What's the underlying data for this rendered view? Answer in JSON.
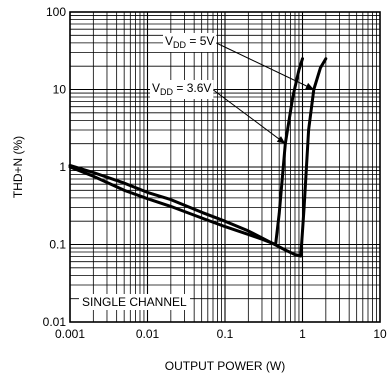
{
  "chart_data": {
    "type": "line",
    "title": "",
    "xlabel": "OUTPUT POWER (W)",
    "ylabel": "THD+N (%)",
    "x_scale": "log",
    "y_scale": "log",
    "xlim": [
      0.001,
      10
    ],
    "ylim": [
      0.01,
      100
    ],
    "grid": true,
    "x_ticks": [
      "0.001",
      "0.01",
      "0.1",
      "1",
      "10"
    ],
    "y_ticks": [
      "100",
      "10",
      "1",
      "0.1",
      "0.01"
    ],
    "legend_box": "SINGLE CHANNEL",
    "series": [
      {
        "name": "V_DD = 5V",
        "x": [
          0.001,
          0.002,
          0.005,
          0.01,
          0.02,
          0.05,
          0.1,
          0.2,
          0.4,
          0.6,
          0.8,
          0.95,
          1.05,
          1.2,
          1.4,
          1.7,
          2.0
        ],
        "y": [
          1.05,
          0.85,
          0.62,
          0.47,
          0.38,
          0.26,
          0.2,
          0.15,
          0.105,
          0.085,
          0.074,
          0.071,
          0.3,
          3.0,
          10.0,
          19.0,
          25.0
        ]
      },
      {
        "name": "V_DD = 3.6V",
        "x": [
          0.001,
          0.002,
          0.005,
          0.01,
          0.02,
          0.05,
          0.1,
          0.2,
          0.3,
          0.45,
          0.5,
          0.6,
          0.75,
          0.9,
          1.0
        ],
        "y": [
          1.0,
          0.76,
          0.5,
          0.39,
          0.31,
          0.22,
          0.17,
          0.135,
          0.117,
          0.1,
          0.25,
          2.0,
          8.0,
          18.0,
          25.0
        ]
      }
    ],
    "annotations": [
      {
        "text_main": "V",
        "text_sub": "DD",
        "text_rest": " = 5V",
        "series": "V_DD = 5V"
      },
      {
        "text_main": "V",
        "text_sub": "DD",
        "text_rest": " = 3.6V",
        "series": "V_DD = 3.6V"
      }
    ]
  }
}
